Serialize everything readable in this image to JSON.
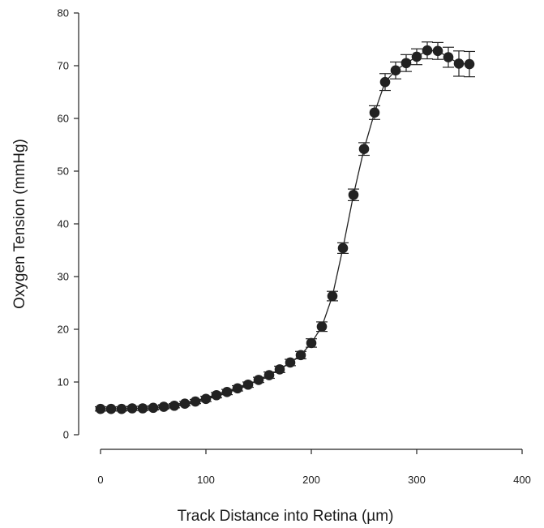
{
  "chart_data": {
    "type": "scatter",
    "xlabel": "Track Distance into Retina (µm)",
    "ylabel": "Oxygen Tension (mmHg)",
    "xlim": [
      0,
      400
    ],
    "ylim": [
      0,
      80
    ],
    "xticks": [
      "0",
      "100",
      "200",
      "300",
      "400"
    ],
    "yticks": [
      "0",
      "10",
      "20",
      "30",
      "40",
      "50",
      "60",
      "70",
      "80"
    ],
    "grid": false,
    "legend": "none",
    "connected_line": true,
    "error_bars": true,
    "colors": {
      "marker": "#222222",
      "line": "#222222",
      "axis": "#222222"
    },
    "series": [
      {
        "x": [
          0,
          10,
          20,
          30,
          40,
          50,
          60,
          70,
          80,
          90,
          100,
          110,
          120,
          130,
          140,
          150,
          160,
          170,
          180,
          190,
          200,
          210,
          220,
          230,
          240,
          250,
          260,
          270,
          280,
          290,
          300,
          310,
          320,
          330,
          340,
          350
        ],
        "y": [
          4.9,
          4.9,
          4.9,
          5.0,
          5.0,
          5.1,
          5.3,
          5.5,
          5.9,
          6.3,
          6.8,
          7.5,
          8.1,
          8.8,
          9.5,
          10.4,
          11.3,
          12.4,
          13.7,
          15.1,
          17.4,
          20.5,
          26.3,
          35.4,
          45.5,
          54.2,
          61.1,
          66.9,
          69.1,
          70.5,
          71.7,
          72.9,
          72.8,
          71.6,
          70.4,
          70.3
        ],
        "err": [
          0.4,
          0.4,
          0.4,
          0.4,
          0.4,
          0.4,
          0.4,
          0.4,
          0.4,
          0.4,
          0.5,
          0.5,
          0.5,
          0.5,
          0.5,
          0.5,
          0.6,
          0.6,
          0.6,
          0.7,
          0.8,
          0.9,
          0.9,
          1.0,
          1.1,
          1.2,
          1.3,
          1.6,
          1.6,
          1.6,
          1.5,
          1.6,
          1.6,
          1.9,
          2.4,
          2.4
        ]
      }
    ]
  }
}
